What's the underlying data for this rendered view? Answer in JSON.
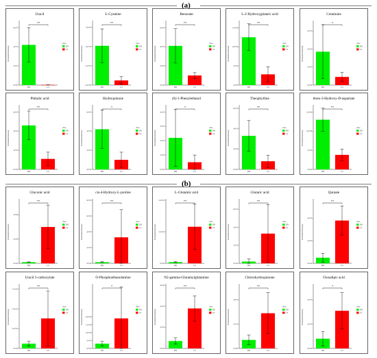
{
  "panels": [
    {
      "label": "(a)"
    },
    {
      "label": "(b)"
    }
  ],
  "colors": {
    "DN": "#00ee00",
    "LS": "#ff0000",
    "axis": "#000000"
  },
  "legend": {
    "title": "class",
    "entries": [
      "DN",
      "LS"
    ]
  },
  "axis": {
    "ylabel": "Normalized intensity"
  },
  "chart_data": [
    {
      "type": "bar",
      "title": "Uracil",
      "categories": [
        "DN",
        "LS"
      ],
      "values": [
        4.2,
        0.02
      ],
      "errors": [
        1.8,
        0.01
      ],
      "sig": "**",
      "yticks": [
        "0e+00",
        "2e+07",
        "4e+07",
        "6e+07"
      ],
      "tickvals": [
        0,
        2,
        4,
        6
      ],
      "ymax": 6.6
    },
    {
      "type": "bar",
      "title": "L-Cysteine",
      "categories": [
        "DN",
        "LS"
      ],
      "values": [
        5.1,
        0.6
      ],
      "errors": [
        2.2,
        0.5
      ],
      "sig": "**",
      "yticks": [
        "0.0e+00",
        "2.5e+05",
        "5.0e+05",
        "7.5e+05"
      ],
      "tickvals": [
        0,
        2.5,
        5,
        7.5
      ],
      "ymax": 8.2
    },
    {
      "type": "bar",
      "title": "Benzoate",
      "categories": [
        "DN",
        "LS"
      ],
      "values": [
        4.1,
        1.0
      ],
      "errors": [
        1.8,
        0.3
      ],
      "sig": "**",
      "yticks": [
        "0e+00",
        "2e+05",
        "4e+05",
        "6e+05"
      ],
      "tickvals": [
        0,
        2,
        4,
        6
      ],
      "ymax": 6.6
    },
    {
      "type": "bar",
      "title": "L-2-Hydroxyglutaric acid",
      "categories": [
        "DN",
        "LS"
      ],
      "values": [
        1.25,
        0.28
      ],
      "errors": [
        0.35,
        0.2
      ],
      "sig": "**",
      "yticks": [
        "0e+00",
        "5e+05",
        "1.0e+06",
        "1.5e+06"
      ],
      "tickvals": [
        0,
        0.5,
        1.0,
        1.5
      ],
      "ymax": 1.65
    },
    {
      "type": "bar",
      "title": "Creatinine",
      "categories": [
        "DN",
        "LS"
      ],
      "values": [
        3.7,
        0.9
      ],
      "errors": [
        3.0,
        0.5
      ],
      "sig": "*",
      "yticks": [
        "0e+00",
        "2e+05",
        "4e+05",
        "6e+05"
      ],
      "tickvals": [
        0,
        2,
        4,
        6
      ],
      "ymax": 7.0
    },
    {
      "type": "bar",
      "title": "Phthalic acid",
      "categories": [
        "DN",
        "LS"
      ],
      "values": [
        4.6,
        1.1
      ],
      "errors": [
        1.5,
        0.7
      ],
      "sig": "**",
      "yticks": [
        "0e+00",
        "2e+05",
        "4e+05",
        "6e+05"
      ],
      "tickvals": [
        0,
        2,
        4,
        6
      ],
      "ymax": 6.6
    },
    {
      "type": "bar",
      "title": "Hydroquinone",
      "categories": [
        "DN",
        "LS"
      ],
      "values": [
        4.2,
        1.0
      ],
      "errors": [
        2.0,
        0.8
      ],
      "sig": "*",
      "yticks": [
        "0e+00",
        "2e+05",
        "4e+05",
        "6e+05"
      ],
      "tickvals": [
        0,
        2,
        4,
        6
      ],
      "ymax": 6.6
    },
    {
      "type": "bar",
      "title": "(S)-1-Phenylethanol",
      "categories": [
        "DN",
        "LS"
      ],
      "values": [
        2.2,
        0.5
      ],
      "errors": [
        2.0,
        0.5
      ],
      "sig": "*",
      "yticks": [
        "0e+00",
        "1e+05",
        "2e+05",
        "3e+05",
        "4e+05"
      ],
      "tickvals": [
        0,
        1,
        2,
        3,
        4
      ],
      "ymax": 4.4
    },
    {
      "type": "bar",
      "title": "Theophylline",
      "categories": [
        "DN",
        "LS"
      ],
      "values": [
        3.3,
        0.8
      ],
      "errors": [
        1.5,
        0.6
      ],
      "sig": "**",
      "yticks": [
        "0e+00",
        "2e+05",
        "4e+05",
        "6e+05"
      ],
      "tickvals": [
        0,
        2,
        4,
        6
      ],
      "ymax": 6.2
    },
    {
      "type": "bar",
      "title": "threo-3-Hydroxy-D-aspartate",
      "categories": [
        "DN",
        "LS"
      ],
      "values": [
        1.3,
        0.38
      ],
      "errors": [
        0.3,
        0.15
      ],
      "sig": "**",
      "yticks": [
        "0e+00",
        "5e+05",
        "1.0e+06",
        "1.5e+06"
      ],
      "tickvals": [
        0,
        0.5,
        1.0,
        1.5
      ],
      "ymax": 1.65
    },
    {
      "type": "bar",
      "title": "Gluconic acid",
      "categories": [
        "DN",
        "LS"
      ],
      "values": [
        0.1,
        3.0
      ],
      "errors": [
        0.02,
        1.8
      ],
      "sig": "**",
      "yticks": [
        "0e+00",
        "2e+06",
        "4e+06",
        "6e+06"
      ],
      "tickvals": [
        0,
        2,
        4,
        6
      ],
      "ymax": 5.2
    },
    {
      "type": "bar",
      "title": "cis-4-Hydroxy-L-proline",
      "categories": [
        "DN",
        "LS"
      ],
      "values": [
        0.15,
        3.3
      ],
      "errors": [
        0.05,
        3.5
      ],
      "sig": "**",
      "yticks": [
        "0e+00",
        "2e+05",
        "4e+05",
        "6e+05",
        "8e+05"
      ],
      "tickvals": [
        0,
        2,
        4,
        6,
        8
      ],
      "ymax": 8.0
    },
    {
      "type": "bar",
      "title": "L-Glutamic acid",
      "categories": [
        "DN",
        "LS"
      ],
      "values": [
        0.1,
        2.9
      ],
      "errors": [
        0.05,
        1.8
      ],
      "sig": "**",
      "yticks": [
        "0e+00",
        "2.5e+05",
        "5.0e+05",
        "7.5e+05"
      ],
      "tickvals": [
        0,
        2.5,
        5,
        7.5
      ],
      "ymax": 5.0
    },
    {
      "type": "bar",
      "title": "Glutaric acid",
      "categories": [
        "DN",
        "LS"
      ],
      "values": [
        0.2,
        3.3
      ],
      "errors": [
        0.3,
        3.2
      ],
      "sig": "**",
      "yticks": [
        "0e+00",
        "2e+05",
        "4e+05",
        "6e+05",
        "8e+05"
      ],
      "tickvals": [
        0,
        2,
        4,
        6,
        8
      ],
      "ymax": 7.0
    },
    {
      "type": "bar",
      "title": "Quinate",
      "categories": [
        "DN",
        "LS"
      ],
      "values": [
        0.5,
        3.8
      ],
      "errors": [
        0.4,
        1.3
      ],
      "sig": "**",
      "yticks": [
        "0e+00",
        "2e+05",
        "4e+05",
        "6e+05"
      ],
      "tickvals": [
        0,
        2,
        4,
        6
      ],
      "ymax": 5.6
    },
    {
      "type": "bar",
      "title": "Uracil 5-carboxylate",
      "categories": [
        "DN",
        "LS"
      ],
      "values": [
        0.6,
        3.8
      ],
      "errors": [
        0.3,
        3.5
      ],
      "sig": "**",
      "yticks": [
        "0e+00",
        "2.5e+05",
        "5.0e+05",
        "7.5e+05"
      ],
      "tickvals": [
        0,
        2.5,
        5,
        7.5
      ],
      "ymax": 8.0
    },
    {
      "type": "bar",
      "title": "O-Phosphoethanolamine",
      "categories": [
        "DN",
        "LS"
      ],
      "values": [
        0.3,
        1.9
      ],
      "errors": [
        0.15,
        2.0
      ],
      "sig": "*",
      "yticks": [
        "0e+00",
        "5e+05",
        "1.0e+06",
        "1.5e+06",
        "2.0e+06"
      ],
      "tickvals": [
        0,
        0.5,
        1.0,
        1.5,
        2.0
      ],
      "ymax": 4.0
    },
    {
      "type": "bar",
      "title": "N2-gamma-Glutamylglutamine",
      "categories": [
        "DN",
        "LS"
      ],
      "values": [
        0.7,
        3.8
      ],
      "errors": [
        0.3,
        1.2
      ],
      "sig": "**",
      "yticks": [
        "0e+00",
        "2e+05",
        "4e+05",
        "6e+05"
      ],
      "tickvals": [
        0,
        2,
        4,
        6
      ],
      "ymax": 6.0
    },
    {
      "type": "bar",
      "title": "Chlorohydroquinone",
      "categories": [
        "DN",
        "LS"
      ],
      "values": [
        0.7,
        2.9
      ],
      "errors": [
        0.4,
        1.7
      ],
      "sig": "**",
      "yticks": [
        "0e+00",
        "2e+05",
        "4e+05",
        "6e+05"
      ],
      "tickvals": [
        0,
        2,
        4,
        6
      ],
      "ymax": 5.2
    },
    {
      "type": "bar",
      "title": "Oxoadipic acid",
      "categories": [
        "DN",
        "LS"
      ],
      "values": [
        0.8,
        3.1
      ],
      "errors": [
        0.6,
        1.5
      ],
      "sig": "*",
      "yticks": [
        "0e+00",
        "2e+05",
        "4e+05",
        "6e+05"
      ],
      "tickvals": [
        0,
        2,
        4,
        6
      ],
      "ymax": 5.2
    }
  ]
}
